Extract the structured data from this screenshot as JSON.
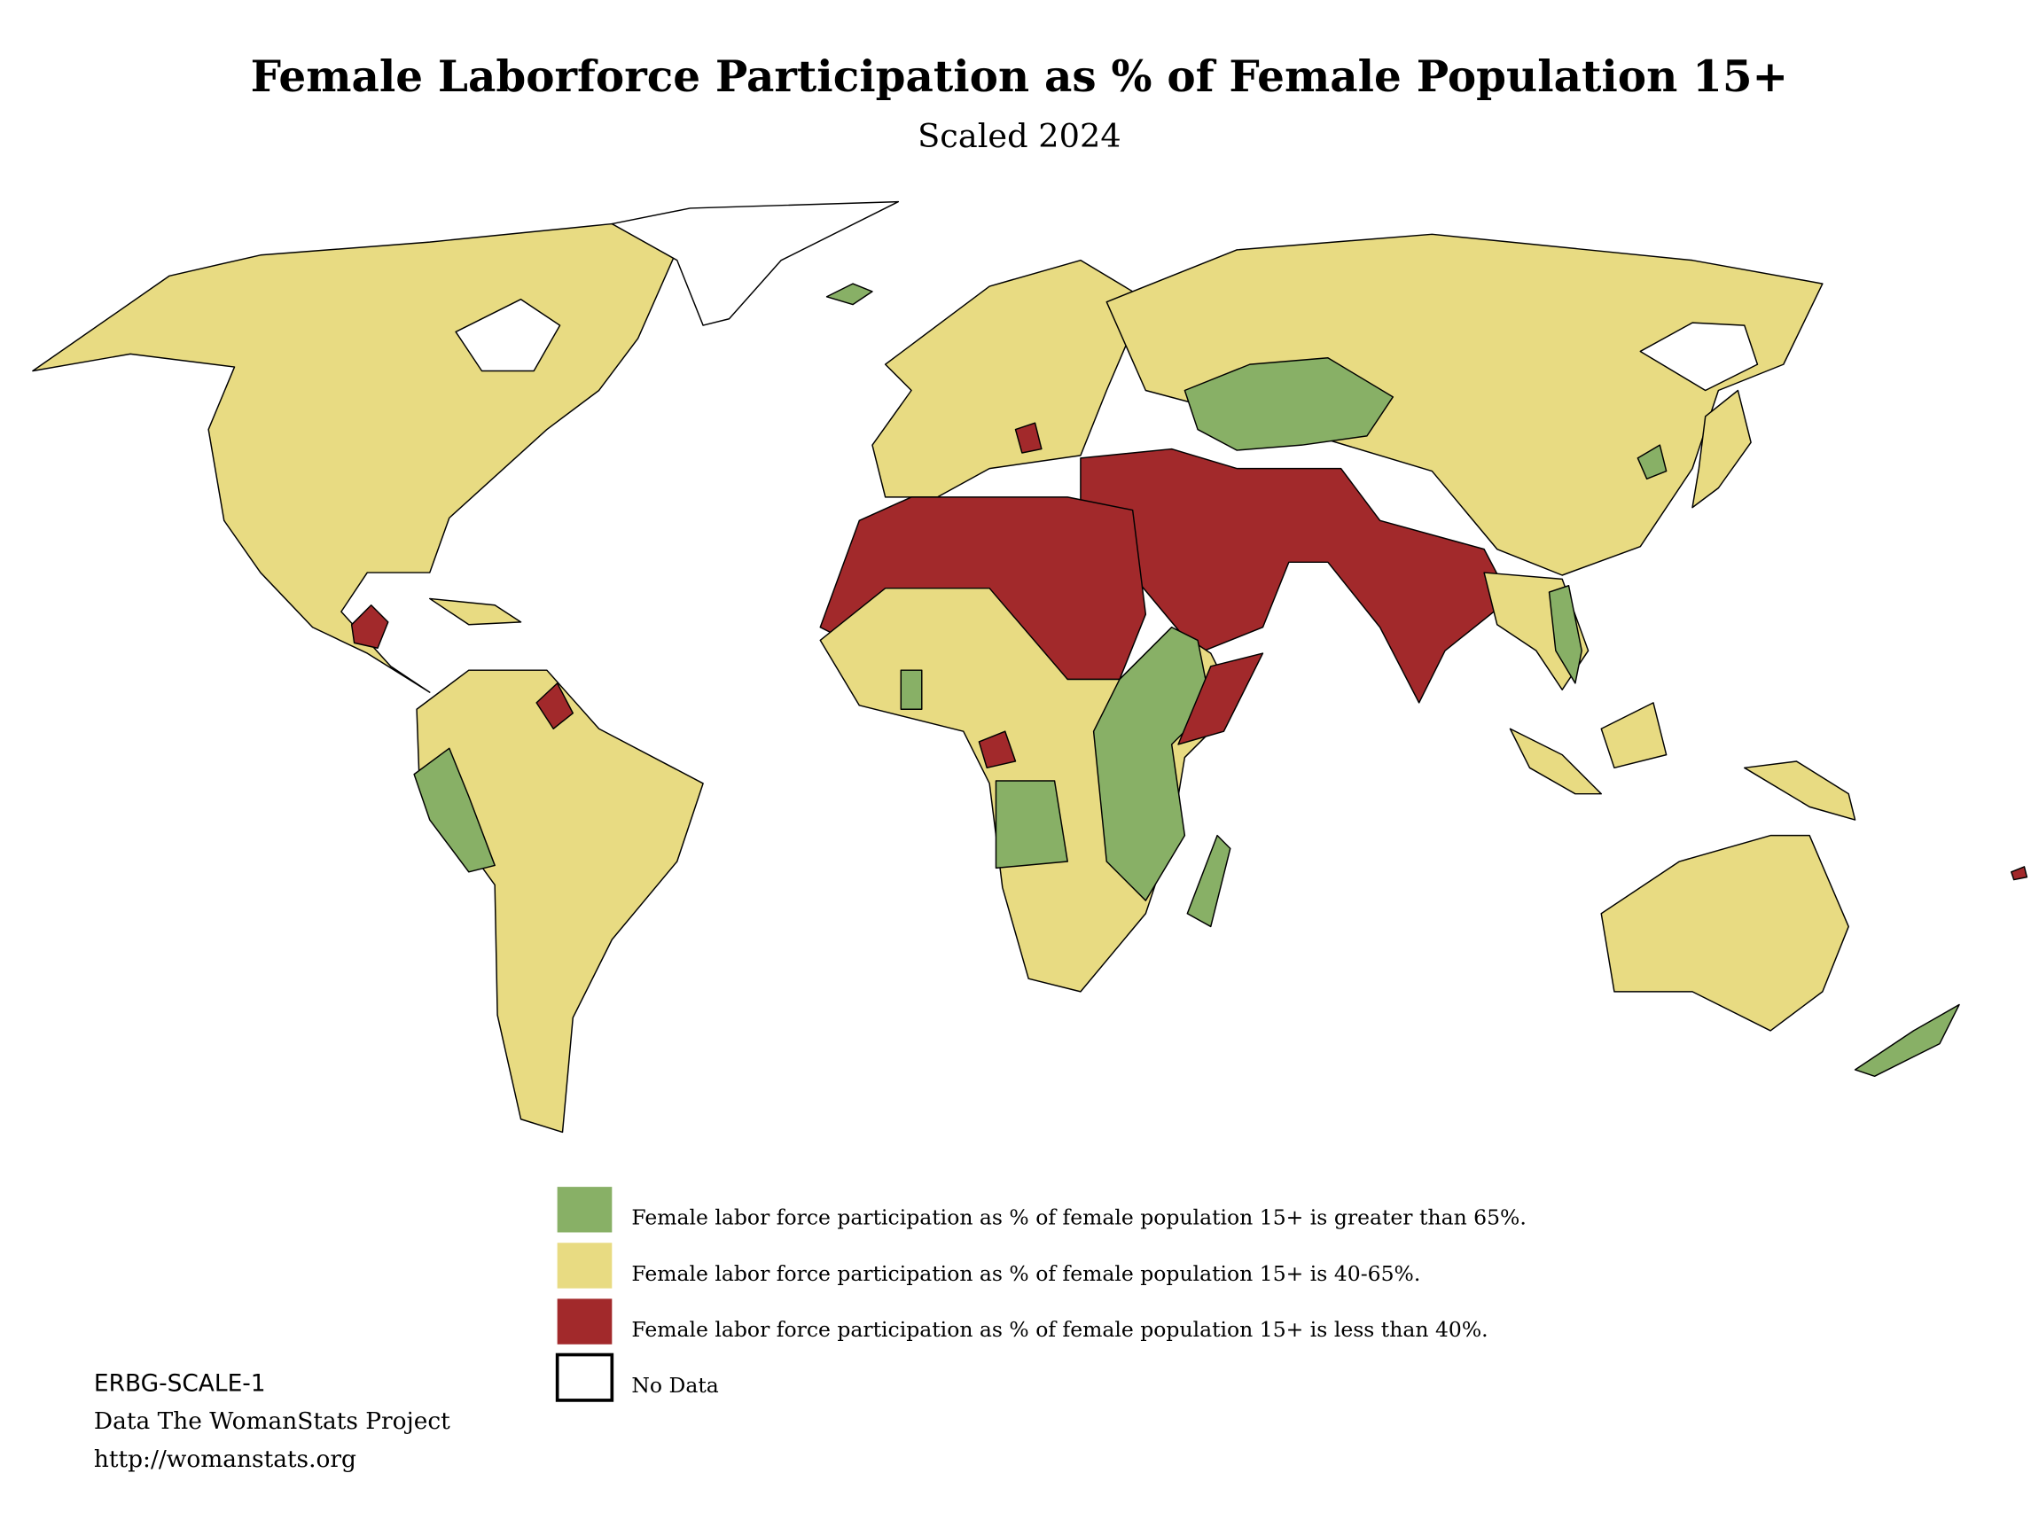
{
  "title": "Female Laborforce Participation as % of Female Population 15+",
  "subtitle": "Scaled 2024",
  "legend": {
    "items": [
      {
        "color": "#88b066",
        "label": "Female labor force participation as % of female population 15+ is greater than 65%."
      },
      {
        "color": "#e8db82",
        "label": "Female labor force participation as % of female population 15+ is 40-65%."
      },
      {
        "color": "#a2292b",
        "label": "Female labor force participation as % of female population 15+ is less than 40%."
      },
      {
        "color": "#ffffff",
        "label": "No Data"
      }
    ]
  },
  "footer": {
    "code": "ERBG-SCALE-1",
    "source": "Data The WomanStats Project",
    "url": "http://womanstats.org"
  }
}
